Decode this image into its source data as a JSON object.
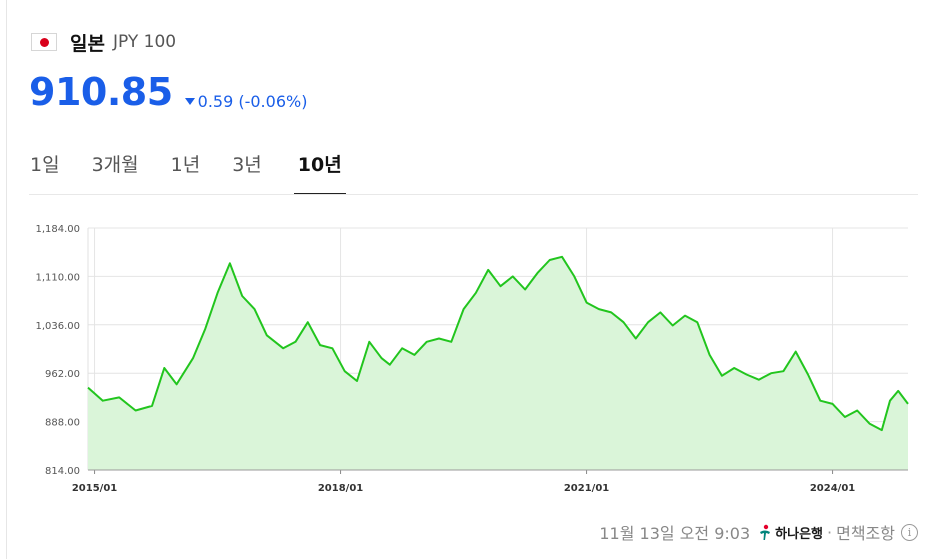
{
  "header": {
    "country": "일본",
    "currency_code": "JPY 100",
    "flag_icon": "japan-flag-icon"
  },
  "quote": {
    "price": "910.85",
    "change": "0.59 (-0.06%)",
    "direction": "down",
    "color": "#1a5ee8"
  },
  "tabs": [
    {
      "label": "1일",
      "active": false
    },
    {
      "label": "3개월",
      "active": false
    },
    {
      "label": "1년",
      "active": false
    },
    {
      "label": "3년",
      "active": false
    },
    {
      "label": "10년",
      "active": true
    }
  ],
  "chart_data": {
    "type": "area",
    "line_color": "#22c51e",
    "fill_color": "#daf5d9",
    "ylim": [
      814,
      1184
    ],
    "yticks": [
      "1,184.00",
      "1,110.00",
      "1,036.00",
      "962.00",
      "888.00",
      "814.00"
    ],
    "ytick_values": [
      1184,
      1110,
      1036,
      962,
      888,
      814
    ],
    "xticks": [
      "2015/01",
      "2018/01",
      "2021/01",
      "2024/01"
    ],
    "xtick_values": [
      2015.0,
      2018.0,
      2021.0,
      2024.0
    ],
    "xlim": [
      2014.92,
      2024.92
    ],
    "grid": true,
    "x": [
      2014.92,
      2015.1,
      2015.3,
      2015.5,
      2015.7,
      2015.85,
      2016.0,
      2016.2,
      2016.35,
      2016.5,
      2016.65,
      2016.8,
      2016.95,
      2017.1,
      2017.3,
      2017.45,
      2017.6,
      2017.75,
      2017.9,
      2018.05,
      2018.2,
      2018.35,
      2018.5,
      2018.6,
      2018.75,
      2018.9,
      2019.05,
      2019.2,
      2019.35,
      2019.5,
      2019.65,
      2019.8,
      2019.95,
      2020.1,
      2020.25,
      2020.4,
      2020.55,
      2020.7,
      2020.85,
      2021.0,
      2021.15,
      2021.3,
      2021.45,
      2021.6,
      2021.75,
      2021.9,
      2022.05,
      2022.2,
      2022.35,
      2022.5,
      2022.65,
      2022.8,
      2022.95,
      2023.1,
      2023.25,
      2023.4,
      2023.55,
      2023.7,
      2023.85,
      2024.0,
      2024.15,
      2024.3,
      2024.45,
      2024.6,
      2024.7,
      2024.8,
      2024.92
    ],
    "y": [
      940,
      920,
      925,
      905,
      912,
      970,
      945,
      985,
      1030,
      1085,
      1130,
      1080,
      1060,
      1020,
      1000,
      1010,
      1040,
      1005,
      1000,
      965,
      950,
      1010,
      985,
      975,
      1000,
      990,
      1010,
      1015,
      1010,
      1060,
      1085,
      1120,
      1095,
      1110,
      1090,
      1115,
      1135,
      1140,
      1110,
      1070,
      1060,
      1055,
      1040,
      1015,
      1040,
      1055,
      1035,
      1050,
      1040,
      990,
      958,
      970,
      960,
      952,
      962,
      965,
      995,
      960,
      920,
      915,
      895,
      905,
      885,
      875,
      920,
      935,
      915
    ]
  },
  "footer": {
    "timestamp": "11월 13일 오전 9:03",
    "bank": "하나은행",
    "separator": "·",
    "disclaimer": "면책조항"
  }
}
